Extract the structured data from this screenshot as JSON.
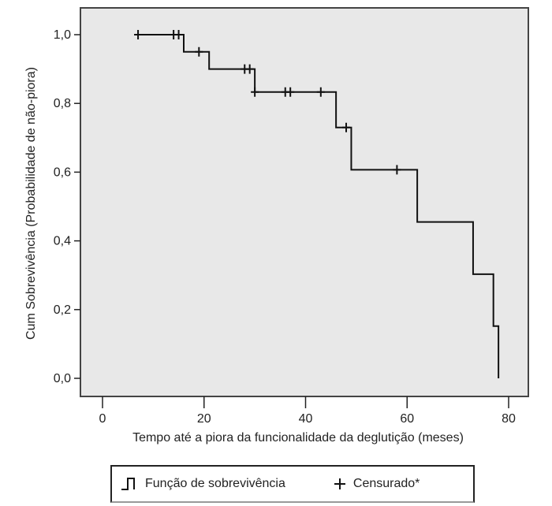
{
  "chart_data": {
    "type": "line",
    "subtype": "kaplan-meier-step",
    "title": "",
    "xlabel": "Tempo até a piora da funcionalidade da deglutição (meses)",
    "ylabel": "Cum Sobrevivência (Probabilidade de não-piora)",
    "xlim": [
      0,
      80
    ],
    "ylim": [
      0,
      1
    ],
    "xticks": [
      "0",
      "20",
      "40",
      "60",
      "80"
    ],
    "yticks": [
      "0,0",
      "0,2",
      "0,4",
      "0,6",
      "0,8",
      "1,0"
    ],
    "grid": false,
    "series": [
      {
        "name": "Função de sobrevivência",
        "steps": [
          [
            7,
            1.0
          ],
          [
            16,
            0.95
          ],
          [
            21,
            0.9
          ],
          [
            30,
            0.833
          ],
          [
            46,
            0.73
          ],
          [
            49,
            0.607
          ],
          [
            62,
            0.455
          ],
          [
            73,
            0.303
          ],
          [
            77,
            0.152
          ],
          [
            78,
            0.0
          ]
        ]
      }
    ],
    "censored": [
      [
        7,
        1.0
      ],
      [
        14,
        1.0
      ],
      [
        15,
        1.0
      ],
      [
        19,
        0.95
      ],
      [
        28,
        0.9
      ],
      [
        29,
        0.9
      ],
      [
        30,
        0.833
      ],
      [
        36,
        0.833
      ],
      [
        37,
        0.833
      ],
      [
        43,
        0.833
      ],
      [
        48,
        0.73
      ],
      [
        58,
        0.607
      ]
    ],
    "legend": {
      "placement": "bottom",
      "items": [
        "Função de sobrevivência",
        "Censurado*"
      ]
    },
    "colors": {
      "plot_bg": "#e8e8e8",
      "line": "#111111"
    }
  }
}
